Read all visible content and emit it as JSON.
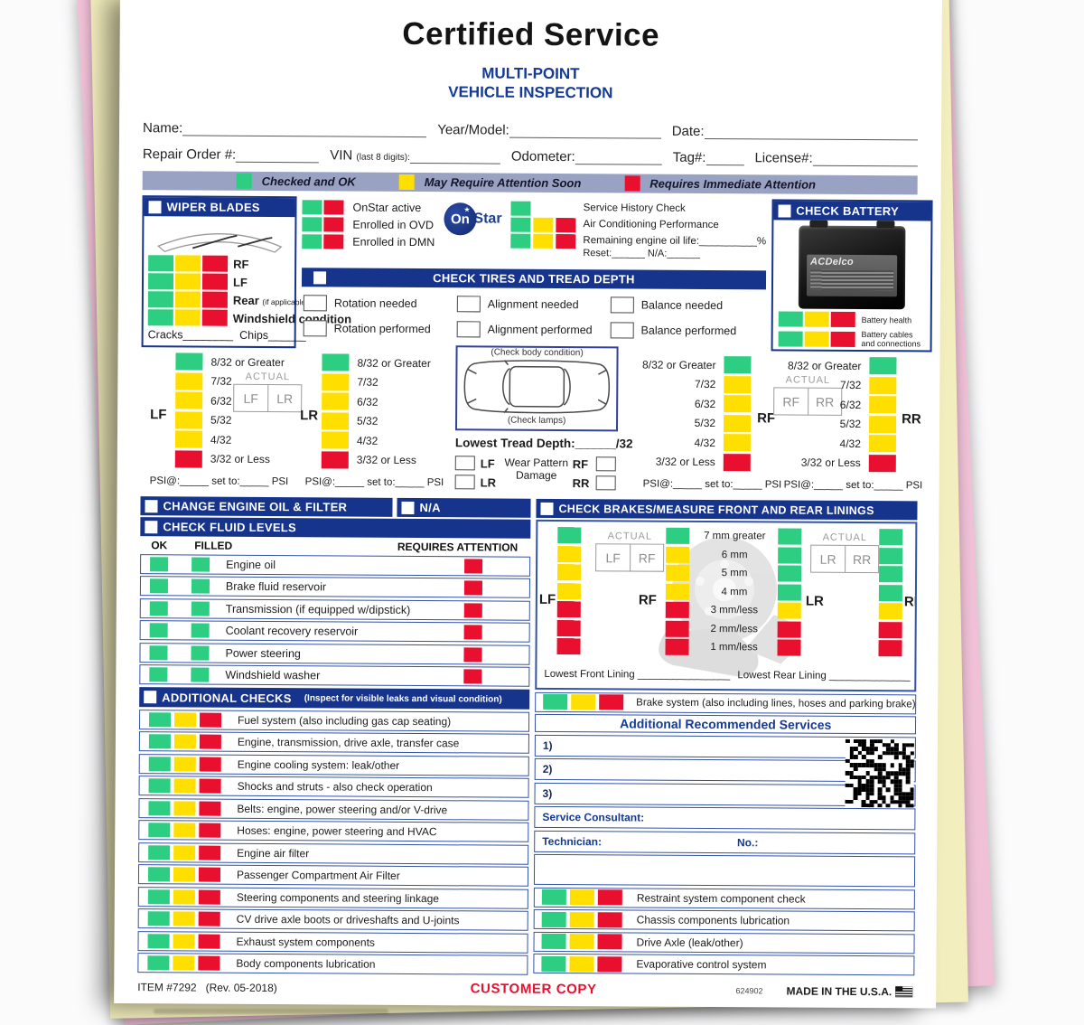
{
  "colors": {
    "green": "#2ece82",
    "yellow": "#ffdf00",
    "red": "#e8102e",
    "navy": "#16348c",
    "row_border": "#3352a8",
    "legend_bg": "#99a2c2",
    "blue_text": "#143a96",
    "footer_red": "#e8102e"
  },
  "header": {
    "title": "Certified Service",
    "subtitle_line1": "MULTI-POINT",
    "subtitle_line2": "VEHICLE INSPECTION",
    "name_label": "Name:",
    "year_model_label": "Year/Model:",
    "date_label": "Date:",
    "repair_order_label": "Repair Order #:",
    "vin_label": "VIN",
    "vin_note": "(last 8 digits):",
    "odometer_label": "Odometer:",
    "tag_label": "Tag#:",
    "license_label": "License#:"
  },
  "legend": {
    "items": [
      {
        "c": "g",
        "label": "Checked and OK"
      },
      {
        "c": "y",
        "label": "May Require Attention Soon"
      },
      {
        "c": "r",
        "label": "Requires Immediate Attention"
      }
    ]
  },
  "wiper": {
    "title": "WIPER BLADES",
    "rows": [
      {
        "label": "RF",
        "note": "",
        "cls": "wlab"
      },
      {
        "label": "LF",
        "note": "",
        "cls": "wlab"
      },
      {
        "label": "Rear",
        "note": "(if applicable)",
        "cls": "wlab small-head"
      },
      {
        "label": "Windshield condition",
        "note": "",
        "cls": "wlab small"
      }
    ],
    "cracks": "Cracks________",
    "chips": "Chips______"
  },
  "onstar": {
    "rows": [
      {
        "label": "OnStar active"
      },
      {
        "label": "Enrolled in OVD"
      },
      {
        "label": "Enrolled in DMN"
      }
    ],
    "logo_on": "On",
    "logo_star": "Star"
  },
  "history": {
    "rows": [
      {
        "colors": "g",
        "label": "Service History Check",
        "label2": ""
      },
      {
        "colors": "gyr",
        "label": "Air Conditioning Performance",
        "label2": ""
      },
      {
        "colors": "gyr",
        "label": "Remaining engine oil life:__________%",
        "label2": "Reset:______  N/A:______"
      }
    ]
  },
  "battery": {
    "title": "CHECK BATTERY",
    "brand": "ACDelco",
    "rows": [
      {
        "label": "Battery health"
      },
      {
        "label": "Battery cables and connections"
      }
    ]
  },
  "tires": {
    "title": "CHECK TIRES AND TREAD DEPTH",
    "checks": [
      {
        "label": "Rotation needed"
      },
      {
        "label": "Alignment needed"
      },
      {
        "label": "Balance needed"
      },
      {
        "label": "Rotation performed"
      },
      {
        "label": "Alignment performed"
      },
      {
        "label": "Balance performed"
      }
    ],
    "scale": [
      {
        "label": "8/32 or Greater",
        "c": "g"
      },
      {
        "label": "7/32",
        "c": "y"
      },
      {
        "label": "6/32",
        "c": "y"
      },
      {
        "label": "5/32",
        "c": "y"
      },
      {
        "label": "4/32",
        "c": "y"
      },
      {
        "label": "3/32 or Less",
        "c": "r"
      }
    ],
    "actual": "ACTUAL",
    "wheel_lf": "LF",
    "wheel_lr": "LR",
    "wheel_rf": "RF",
    "wheel_rr": "RR",
    "psi_line": "PSI@:_____  set to:_____  PSI",
    "body_note": "(Check body condition)",
    "lamps_note": "(Check lamps)",
    "lowest": "Lowest Tread Depth:______/32",
    "wear_title": "Wear Pattern Damage"
  },
  "oil": {
    "title": "CHANGE ENGINE OIL & FILTER",
    "na": "N/A"
  },
  "fluids": {
    "title": "CHECK FLUID LEVELS",
    "ok": "OK",
    "filled": "FILLED",
    "requires": "REQUIRES ATTENTION",
    "rows": [
      {
        "label": "Engine oil"
      },
      {
        "label": "Brake fluid reservoir"
      },
      {
        "label": "Transmission (if equipped w/dipstick)"
      },
      {
        "label": "Coolant recovery reservoir"
      },
      {
        "label": "Power steering"
      },
      {
        "label": "Windshield washer"
      }
    ]
  },
  "brakes": {
    "title": "CHECK BRAKES/MEASURE FRONT AND REAR LININGS",
    "scale": [
      {
        "label": "7 mm greater"
      },
      {
        "label": "6 mm"
      },
      {
        "label": "5 mm"
      },
      {
        "label": "4 mm"
      },
      {
        "label": "3 mm/less"
      },
      {
        "label": "2 mm/less"
      },
      {
        "label": "1 mm/less"
      }
    ],
    "front_colors": "gyyyrrr",
    "rear_colors": "ggggyrr",
    "actual": "ACTUAL",
    "lowest_front": "Lowest Front Lining ________________",
    "lowest_rear": "Lowest Rear Lining ______________"
  },
  "additional": {
    "title": "ADDITIONAL CHECKS",
    "subtitle": "(Inspect for visible leaks and visual condition)",
    "rows": [
      {
        "label": "Fuel system (also including gas cap seating)"
      },
      {
        "label": "Engine, transmission, drive axle, transfer case"
      },
      {
        "label": "Engine cooling system: leak/other"
      },
      {
        "label": "Shocks and struts - also check operation"
      },
      {
        "label": "Belts: engine, power steering and/or V-drive"
      },
      {
        "label": "Hoses: engine, power steering and HVAC"
      },
      {
        "label": "Engine air filter"
      },
      {
        "label": "Passenger Compartment Air Filter"
      },
      {
        "label": "Steering components and steering linkage"
      },
      {
        "label": "CV drive axle boots or driveshafts and U-joints"
      },
      {
        "label": "Exhaust system components"
      },
      {
        "label": "Body components lubrication"
      }
    ]
  },
  "brake_system": {
    "label": "Brake system (also including lines, hoses and parking brake)"
  },
  "recommended": {
    "title": "Additional Recommended Services",
    "line1": "1)",
    "line2": "2)",
    "line3": "3)",
    "consultant": "Service Consultant:",
    "technician": "Technician:",
    "no_label": "No.:"
  },
  "right_checks": {
    "rows": [
      {
        "label": "Restraint system component check"
      },
      {
        "label": "Chassis components lubrication"
      },
      {
        "label": "Drive Axle (leak/other)"
      },
      {
        "label": "Evaporative control system"
      }
    ]
  },
  "footer": {
    "item": "ITEM #7292",
    "rev": "(Rev. 05-2018)",
    "copy": "CUSTOMER COPY",
    "code": "624902",
    "made": "MADE IN THE U.S.A."
  }
}
